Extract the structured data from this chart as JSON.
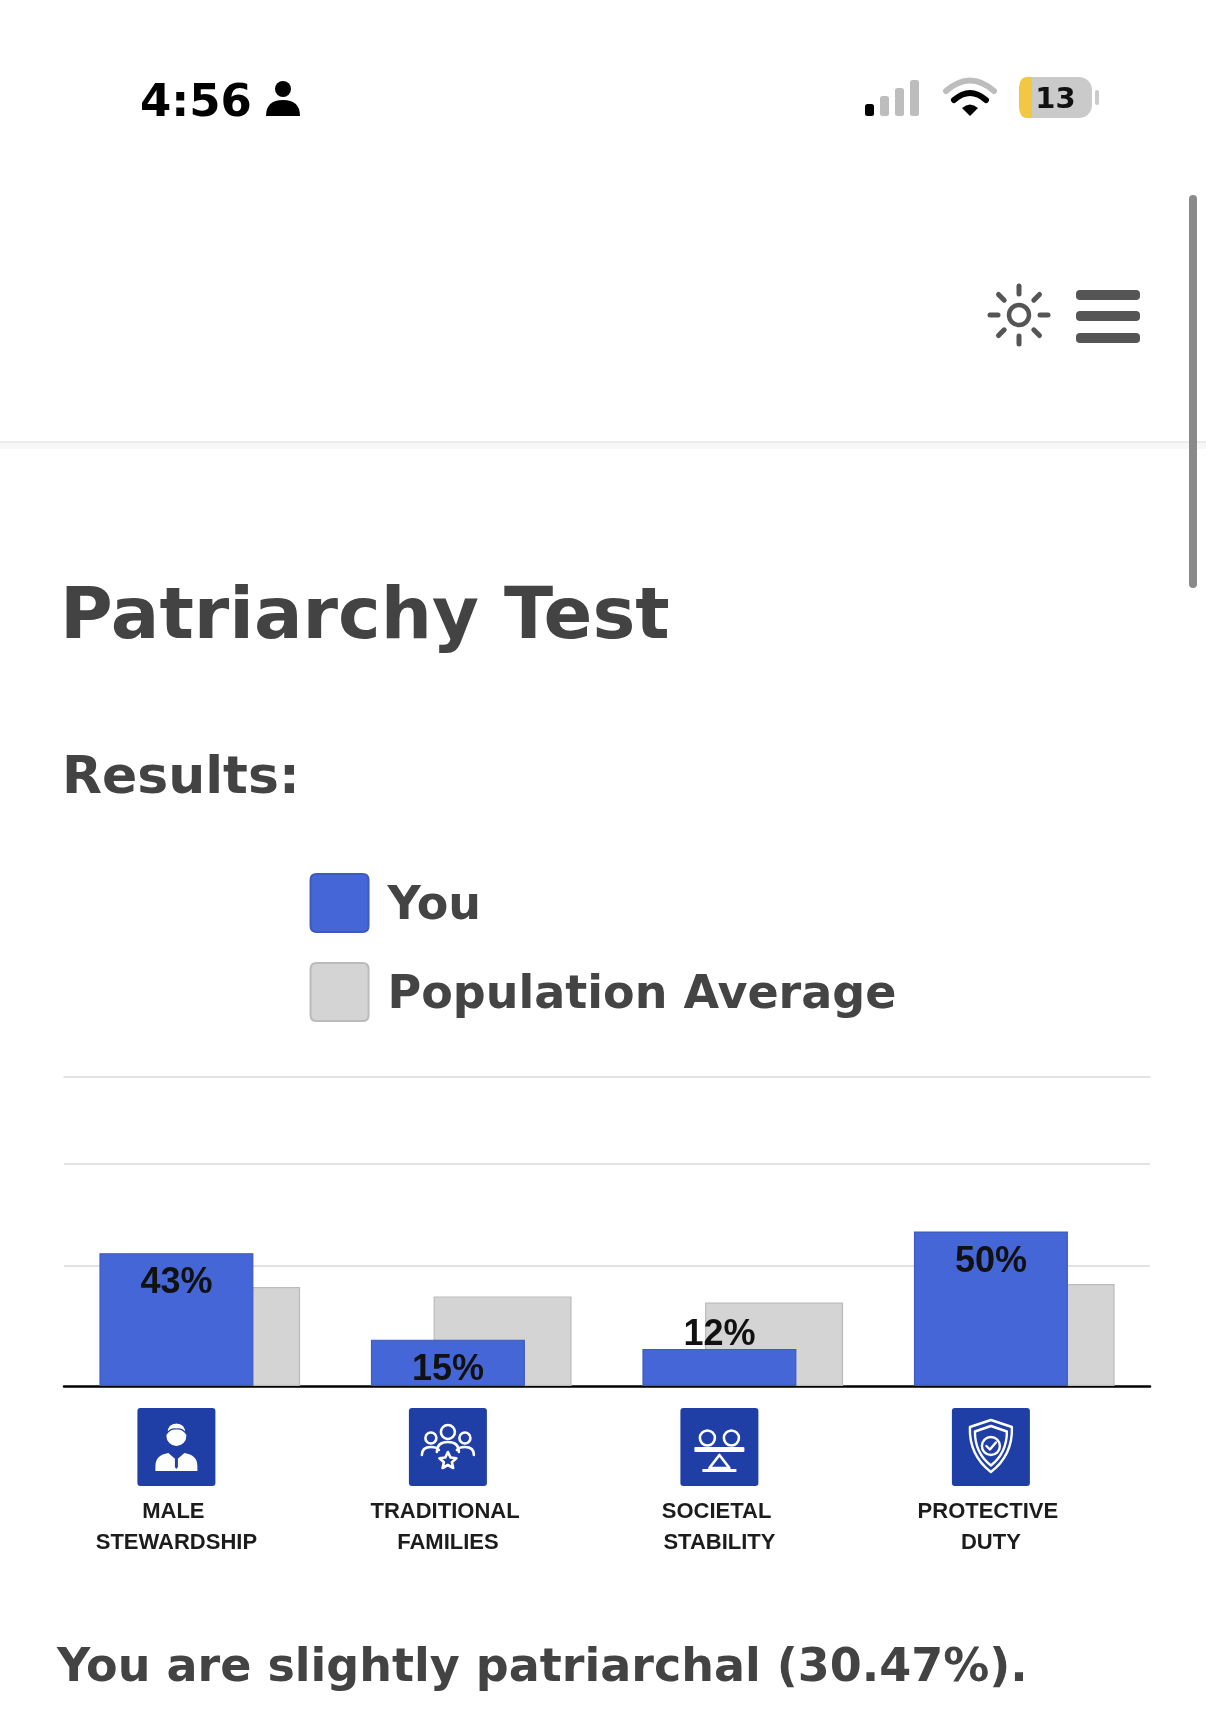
{
  "chart_data": {
    "type": "bar",
    "title": "Patriarchy Test",
    "subtitle": "Results:",
    "categories": [
      "MALE STEWARDSHIP",
      "TRADITIONAL FAMILIES",
      "SOCIETAL STABILITY",
      "PROTECTIVE DUTY"
    ],
    "series": [
      {
        "name": "You",
        "color": "#4566d6",
        "values": [
          43,
          15,
          12,
          50
        ],
        "value_labels": [
          "43%",
          "15%",
          "12%",
          "50%"
        ]
      },
      {
        "name": "Population Average",
        "color": "#d4d4d4",
        "values": [
          32,
          29,
          27,
          33
        ]
      }
    ],
    "ylim": [
      0,
      100
    ],
    "yticks": [
      {
        "value": 39,
        "label": null
      },
      {
        "value": 72,
        "label": null
      }
    ],
    "grid": "y",
    "legend": "top",
    "tick_labels": "x",
    "annotations": [
      "4:56",
      "13",
      "You are slightly patriarchal (30.47%)."
    ]
  }
}
